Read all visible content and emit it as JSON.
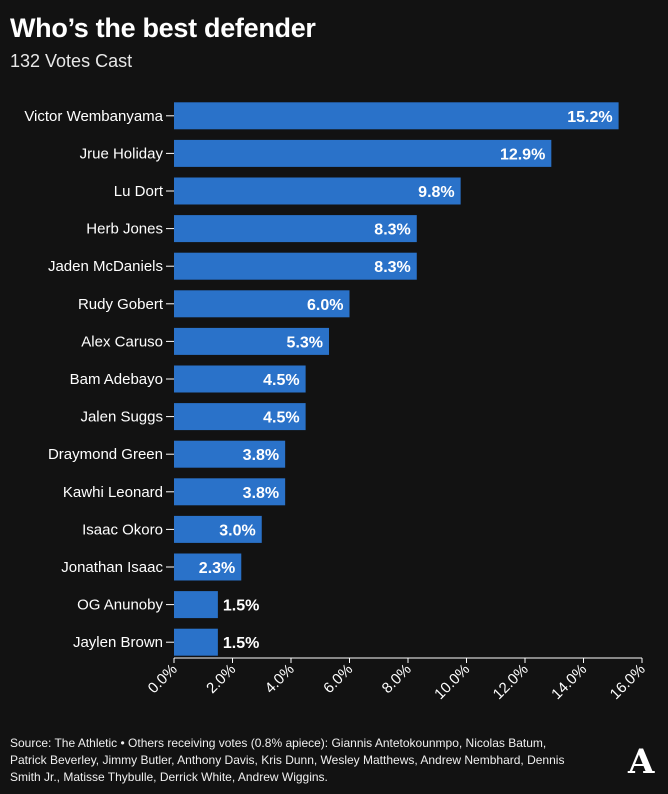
{
  "header": {
    "title": "Who’s the best defender",
    "subtitle": "132 Votes Cast"
  },
  "chart_data": {
    "type": "bar",
    "orientation": "horizontal",
    "title": "Who’s the best defender",
    "subtitle": "132 Votes Cast",
    "categories": [
      "Victor Wembanyama",
      "Jrue Holiday",
      "Lu Dort",
      "Herb Jones",
      "Jaden McDaniels",
      "Rudy Gobert",
      "Alex Caruso",
      "Bam Adebayo",
      "Jalen Suggs",
      "Draymond Green",
      "Kawhi Leonard",
      "Isaac Okoro",
      "Jonathan Isaac",
      "OG Anunoby",
      "Jaylen Brown"
    ],
    "values": [
      15.2,
      12.9,
      9.8,
      8.3,
      8.3,
      6.0,
      5.3,
      4.5,
      4.5,
      3.8,
      3.8,
      3.0,
      2.3,
      1.5,
      1.5
    ],
    "value_labels": [
      "15.2%",
      "12.9%",
      "9.8%",
      "8.3%",
      "8.3%",
      "6.0%",
      "5.3%",
      "4.5%",
      "4.5%",
      "3.8%",
      "3.8%",
      "3.0%",
      "2.3%",
      "1.5%",
      "1.5%"
    ],
    "xlim": [
      0,
      16
    ],
    "xticks": [
      "0.0%",
      "2.0%",
      "4.0%",
      "6.0%",
      "8.0%",
      "10.0%",
      "12.0%",
      "14.0%",
      "16.0%"
    ],
    "xlabel": "",
    "ylabel": "",
    "grid": false,
    "bar_color": "#2a72c9"
  },
  "footer": {
    "source": "Source: The Athletic • Others receiving votes (0.8% apiece): Giannis Antetokounmpo, Nicolas Batum, Patrick Beverley, Jimmy Butler, Anthony Davis, Kris Dunn, Wesley Matthews, Andrew Nembhard, Dennis Smith Jr., Matisse Thybulle, Derrick White, Andrew Wiggins."
  },
  "logo": {
    "text": "A"
  }
}
